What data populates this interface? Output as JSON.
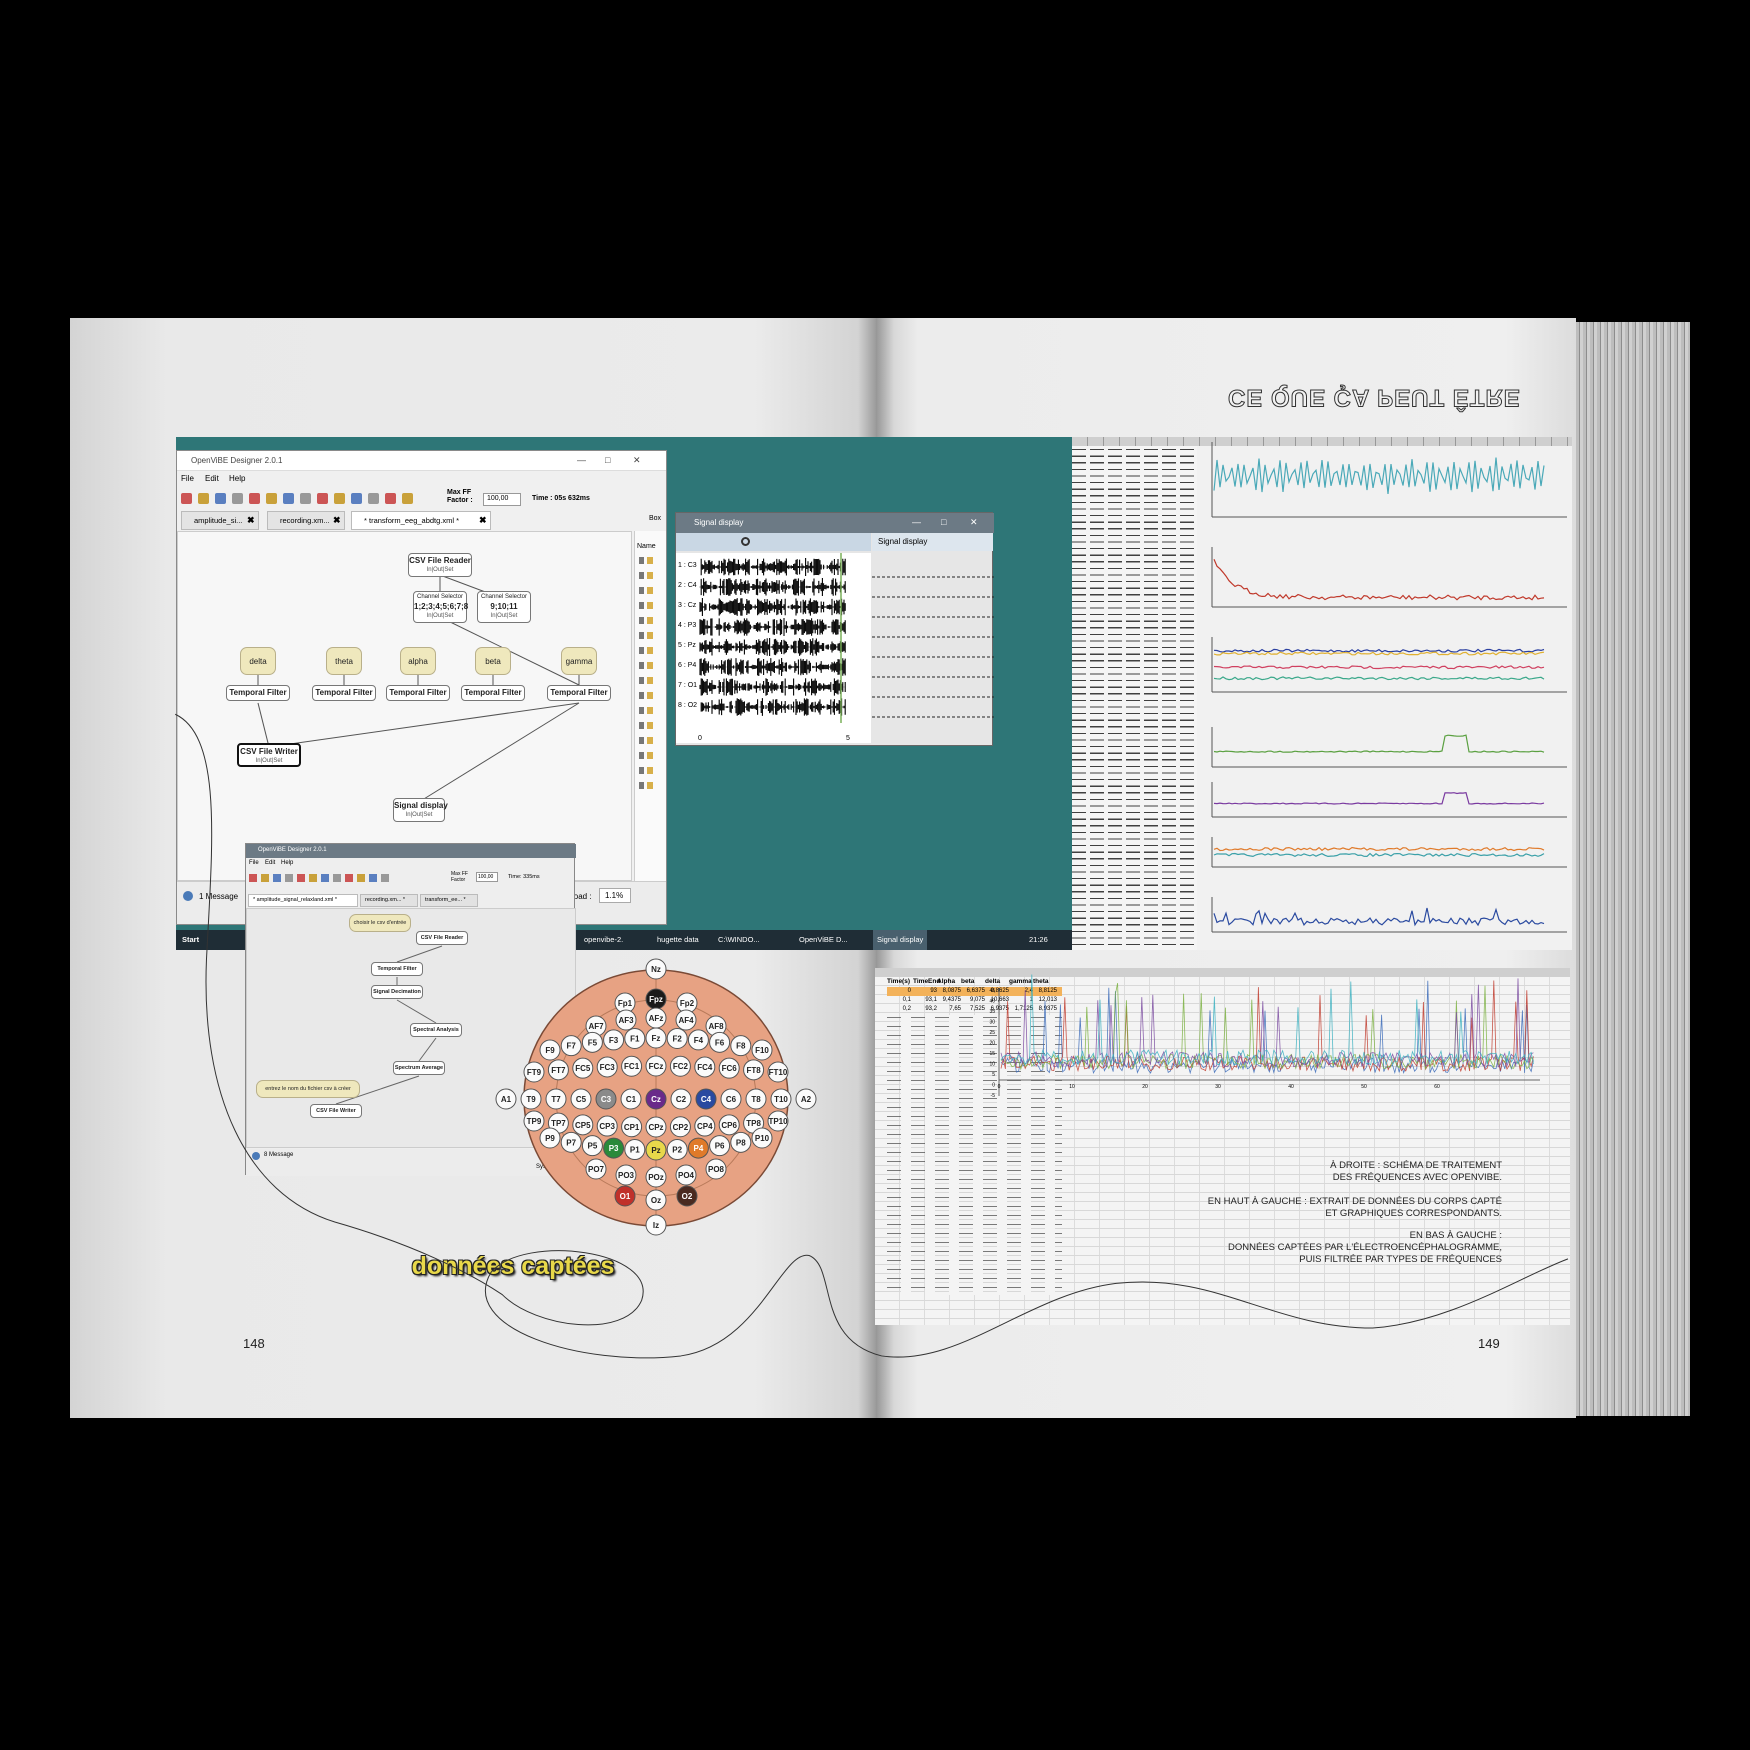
{
  "left_page": {
    "page_number": "148",
    "caption": "données captées"
  },
  "right_page": {
    "page_number": "149",
    "title": "CE QUE ÇA PEUT ÊTRE",
    "notes": [
      "À DROITE : SCHÉMA DE TRAITEMENT",
      "DES FRÉQUENCES AVEC OPENVIBE.",
      "EN HAUT À GAUCHE : EXTRAIT DE DONNÉES DU CORPS CAPTÉ",
      "ET GRAPHIQUES CORRESPONDANTS.",
      "EN BAS À GAUCHE :",
      "DONNÉES CAPTÉES PAR L'ÉLECTROENCÉPHALOGRAMME,",
      "PUIS FILTRÉE PAR TYPES DE FRÉQUENCES"
    ]
  },
  "designer": {
    "title": "OpenViBE Designer 2.0.1",
    "menu": [
      "File",
      "Edit",
      "Help"
    ],
    "max_ff": "Max FF Factor :",
    "max_ff_value": "100,00",
    "time": "Time : 05s 632ms",
    "tabs": [
      "amplitude_si...",
      "recording.xm...",
      "* transform_eeg_abdtg.xml *"
    ],
    "sidebar": [
      "Box",
      "Name"
    ],
    "nodes": [
      {
        "label": "CSV File Reader",
        "sub": "In|Out|Set"
      },
      {
        "label": "Channel Selector",
        "detail": "1;2;3;4;5;6;7;8",
        "sub": "In|Out|Set"
      },
      {
        "label": "Channel Selector",
        "detail": "9;10;11",
        "sub": "In|Out|Set"
      },
      {
        "label": "delta"
      },
      {
        "label": "theta"
      },
      {
        "label": "alpha"
      },
      {
        "label": "beta"
      },
      {
        "label": "gamma"
      },
      {
        "label": "Temporal Filter"
      },
      {
        "label": "Temporal Filter"
      },
      {
        "label": "Temporal Filter"
      },
      {
        "label": "Temporal Filter"
      },
      {
        "label": "Temporal Filter"
      },
      {
        "label": "CSV File Writer",
        "sub": "In|Out|Set"
      },
      {
        "label": "Signal display",
        "sub": "In|Out|Set"
      }
    ],
    "status": [
      "1 Message",
      "load :",
      "1.1%"
    ]
  },
  "signal_window": {
    "title": "Signal display",
    "header": "Signal display",
    "channels": [
      "1 : C3",
      "2 : C4",
      "3 : Cz",
      "4 : P3",
      "5 : Pz",
      "6 : P4",
      "7 : O1",
      "8 : O2"
    ],
    "x_labels": [
      "0",
      "5"
    ]
  },
  "taskbar": [
    "Start",
    "openvibe-2.",
    "hugette data",
    "C:\\WINDO...",
    "OpenViBE D...",
    "Signal display",
    "21:26"
  ],
  "designer_2": {
    "title": "OpenViBE Designer 2.0.1",
    "menu": [
      "File",
      "Edit",
      "Help"
    ],
    "max_ff": "Max FF Factor",
    "max_ff_value": "100,00",
    "time": "Time: 335ms",
    "tabs": [
      "* amplitude_signal_relaxland.xml *",
      "recording.xm... *",
      "transform_ee... *"
    ],
    "nodes": [
      "choisir le csv d'entrée",
      "CSV File Reader",
      "Temporal Filter",
      "Signal Decimation",
      "Spectral Analysis",
      "Spectrum Average",
      "entrez le nom du fichier csv à créer",
      "CSV File Writer"
    ],
    "status": [
      "8 Message",
      "System"
    ]
  },
  "electrodes": [
    [
      {
        "label": "Nz"
      }
    ],
    [
      {
        "label": "Fp1"
      },
      {
        "label": "Fpz",
        "color": "#1a1a1a"
      },
      {
        "label": "Fp2"
      }
    ],
    [
      {
        "label": "AF7"
      },
      {
        "label": "AF3"
      },
      {
        "label": "AFz"
      },
      {
        "label": "AF4"
      },
      {
        "label": "AF8"
      }
    ],
    [
      {
        "label": "F9"
      },
      {
        "label": "F7"
      },
      {
        "label": "F5"
      },
      {
        "label": "F3"
      },
      {
        "label": "F1"
      },
      {
        "label": "Fz"
      },
      {
        "label": "F2"
      },
      {
        "label": "F4"
      },
      {
        "label": "F6"
      },
      {
        "label": "F8"
      },
      {
        "label": "F10"
      }
    ],
    [
      {
        "label": "FT9"
      },
      {
        "label": "FT7"
      },
      {
        "label": "FC5"
      },
      {
        "label": "FC3"
      },
      {
        "label": "FC1"
      },
      {
        "label": "FCz"
      },
      {
        "label": "FC2"
      },
      {
        "label": "FC4"
      },
      {
        "label": "FC6"
      },
      {
        "label": "FT8"
      },
      {
        "label": "FT10"
      }
    ],
    [
      {
        "label": "A1"
      },
      {
        "label": "T9"
      },
      {
        "label": "T7"
      },
      {
        "label": "C5"
      },
      {
        "label": "C3",
        "color": "#8a8a8a"
      },
      {
        "label": "C1"
      },
      {
        "label": "Cz",
        "color": "#6a2a8a"
      },
      {
        "label": "C2"
      },
      {
        "label": "C4",
        "color": "#2a4aa0"
      },
      {
        "label": "C6"
      },
      {
        "label": "T8"
      },
      {
        "label": "T10"
      },
      {
        "label": "A2"
      }
    ],
    [
      {
        "label": "TP9"
      },
      {
        "label": "TP7"
      },
      {
        "label": "CP5"
      },
      {
        "label": "CP3"
      },
      {
        "label": "CP1"
      },
      {
        "label": "CPz"
      },
      {
        "label": "CP2"
      },
      {
        "label": "CP4"
      },
      {
        "label": "CP6"
      },
      {
        "label": "TP8"
      },
      {
        "label": "TP10"
      }
    ],
    [
      {
        "label": "P9"
      },
      {
        "label": "P7"
      },
      {
        "label": "P5"
      },
      {
        "label": "P3",
        "color": "#2a8a3a"
      },
      {
        "label": "P1"
      },
      {
        "label": "Pz",
        "color": "#e8d84a"
      },
      {
        "label": "P2"
      },
      {
        "label": "P4",
        "color": "#e07a2a"
      },
      {
        "label": "P6"
      },
      {
        "label": "P8"
      },
      {
        "label": "P10"
      }
    ],
    [
      {
        "label": "PO7"
      },
      {
        "label": "PO3"
      },
      {
        "label": "POz"
      },
      {
        "label": "PO4"
      },
      {
        "label": "PO8"
      }
    ],
    [
      {
        "label": "O1",
        "color": "#c0302a"
      },
      {
        "label": "Oz"
      },
      {
        "label": "O2",
        "color": "#4a2a20"
      }
    ],
    [
      {
        "label": "Iz"
      }
    ]
  ],
  "sheet": {
    "headers": [
      "Time(s)",
      "TimeEnd",
      "Alpha",
      "beta",
      "delta",
      "gamma",
      "theta"
    ],
    "rows": [
      [
        "0",
        "93",
        "8,0875",
        "6,6375",
        "9,8625",
        "2,4",
        "8,8125"
      ],
      [
        "0,1",
        "93,1",
        "9,4375",
        "9,075",
        "10,663",
        "1",
        "12,013"
      ],
      [
        "0,2",
        "93,2",
        "7,65",
        "7,525",
        "6,9375",
        "1,7125",
        "8,9375"
      ]
    ],
    "chart_yticks": [
      "45",
      "40",
      "35",
      "30",
      "25",
      "20",
      "15",
      "10",
      "5",
      "0",
      "-5"
    ],
    "chart_xticks": [
      "0",
      "10",
      "20",
      "30",
      "40",
      "50",
      "60"
    ]
  }
}
